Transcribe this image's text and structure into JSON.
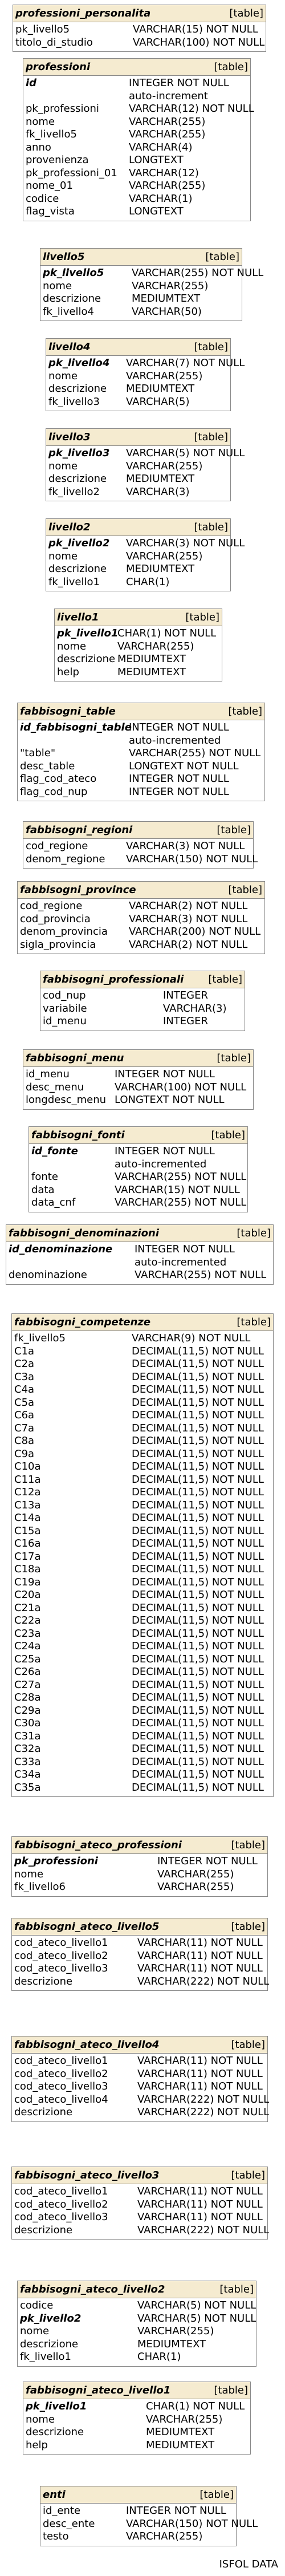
{
  "footer": "ISFOL DATA",
  "table_kind": "[table]",
  "tables": [
    {
      "name": "professioni_personalita",
      "rows": [
        [
          "pk_livello5",
          "VARCHAR(15) NOT NULL",
          false
        ],
        [
          "titolo_di_studio",
          "VARCHAR(100) NOT NULL",
          false
        ]
      ]
    },
    {
      "name": "professioni",
      "rows": [
        [
          "id",
          "INTEGER NOT NULL",
          true
        ],
        [
          "",
          "auto-increment",
          false
        ],
        [
          "pk_professioni",
          "VARCHAR(12) NOT NULL",
          false
        ],
        [
          "nome",
          "VARCHAR(255)",
          false
        ],
        [
          "fk_livello5",
          "VARCHAR(255)",
          false
        ],
        [
          "anno",
          "VARCHAR(4)",
          false
        ],
        [
          "provenienza",
          "LONGTEXT",
          false
        ],
        [
          "pk_professioni_01",
          "VARCHAR(12)",
          false
        ],
        [
          "nome_01",
          "VARCHAR(255)",
          false
        ],
        [
          "codice",
          "VARCHAR(1)",
          false
        ],
        [
          "flag_vista",
          "LONGTEXT",
          false
        ]
      ]
    },
    {
      "name": "livello5",
      "rows": [
        [
          "pk_livello5",
          "VARCHAR(255) NOT NULL",
          true
        ],
        [
          "nome",
          "VARCHAR(255)",
          false
        ],
        [
          "descrizione",
          "MEDIUMTEXT",
          false
        ],
        [
          "fk_livello4",
          "VARCHAR(50)",
          false
        ]
      ]
    },
    {
      "name": "livello4",
      "rows": [
        [
          "pk_livello4",
          "VARCHAR(7) NOT NULL",
          true
        ],
        [
          "nome",
          "VARCHAR(255)",
          false
        ],
        [
          "descrizione",
          "MEDIUMTEXT",
          false
        ],
        [
          "fk_livello3",
          "VARCHAR(5)",
          false
        ]
      ]
    },
    {
      "name": "livello3",
      "rows": [
        [
          "pk_livello3",
          "VARCHAR(5) NOT NULL",
          true
        ],
        [
          "nome",
          "VARCHAR(255)",
          false
        ],
        [
          "descrizione",
          "MEDIUMTEXT",
          false
        ],
        [
          "fk_livello2",
          "VARCHAR(3)",
          false
        ]
      ]
    },
    {
      "name": "livello2",
      "rows": [
        [
          "pk_livello2",
          "VARCHAR(3) NOT NULL",
          true
        ],
        [
          "nome",
          "VARCHAR(255)",
          false
        ],
        [
          "descrizione",
          "MEDIUMTEXT",
          false
        ],
        [
          "fk_livello1",
          "CHAR(1)",
          false
        ]
      ]
    },
    {
      "name": "livello1",
      "rows": [
        [
          "pk_livello1",
          "CHAR(1) NOT NULL",
          true
        ],
        [
          "nome",
          "VARCHAR(255)",
          false
        ],
        [
          "descrizione",
          "MEDIUMTEXT",
          false
        ],
        [
          "help",
          "MEDIUMTEXT",
          false
        ]
      ]
    },
    {
      "name": "fabbisogni_table",
      "rows": [
        [
          "id_fabbisogni_table",
          "INTEGER NOT NULL",
          true
        ],
        [
          "",
          "auto-incremented",
          false
        ],
        [
          "\"table\"",
          "VARCHAR(255) NOT NULL",
          false
        ],
        [
          "desc_table",
          "LONGTEXT NOT NULL",
          false
        ],
        [
          "flag_cod_ateco",
          "INTEGER NOT NULL",
          false
        ],
        [
          "flag_cod_nup",
          "INTEGER NOT NULL",
          false
        ]
      ]
    },
    {
      "name": "fabbisogni_regioni",
      "rows": [
        [
          "cod_regione",
          "VARCHAR(3) NOT NULL",
          false
        ],
        [
          "denom_regione",
          "VARCHAR(150) NOT NULL",
          false
        ]
      ]
    },
    {
      "name": "fabbisogni_province",
      "rows": [
        [
          "cod_regione",
          "VARCHAR(2) NOT NULL",
          false
        ],
        [
          "cod_provincia",
          "VARCHAR(3) NOT NULL",
          false
        ],
        [
          "denom_provincia",
          "VARCHAR(200) NOT NULL",
          false
        ],
        [
          "sigla_provincia",
          "VARCHAR(2) NOT NULL",
          false
        ]
      ]
    },
    {
      "name": "fabbisogni_professionali",
      "rows": [
        [
          "cod_nup",
          "INTEGER",
          false
        ],
        [
          "variabile",
          "VARCHAR(3)",
          false
        ],
        [
          "id_menu",
          "INTEGER",
          false
        ]
      ]
    },
    {
      "name": "fabbisogni_menu",
      "rows": [
        [
          "id_menu",
          "INTEGER NOT NULL",
          false
        ],
        [
          "desc_menu",
          "VARCHAR(100) NOT NULL",
          false
        ],
        [
          "longdesc_menu",
          "LONGTEXT NOT NULL",
          false
        ]
      ]
    },
    {
      "name": "fabbisogni_fonti",
      "rows": [
        [
          "id_fonte",
          "INTEGER NOT NULL",
          true
        ],
        [
          "",
          "auto-incremented",
          false
        ],
        [
          "fonte",
          "VARCHAR(255) NOT NULL",
          false
        ],
        [
          "data",
          "VARCHAR(15) NOT NULL",
          false
        ],
        [
          "data_cnf",
          "VARCHAR(255) NOT NULL",
          false
        ]
      ]
    },
    {
      "name": "fabbisogni_denominazioni",
      "rows": [
        [
          "id_denominazione",
          "INTEGER NOT NULL",
          true
        ],
        [
          "",
          "auto-incremented",
          false
        ],
        [
          "denominazione",
          "VARCHAR(255) NOT NULL",
          false
        ]
      ]
    },
    {
      "name": "fabbisogni_competenze",
      "rows": [
        [
          "fk_livello5",
          "VARCHAR(9) NOT NULL",
          false
        ],
        [
          "C1a",
          "DECIMAL(11,5) NOT NULL",
          false
        ],
        [
          "C2a",
          "DECIMAL(11,5) NOT NULL",
          false
        ],
        [
          "C3a",
          "DECIMAL(11,5) NOT NULL",
          false
        ],
        [
          "C4a",
          "DECIMAL(11,5) NOT NULL",
          false
        ],
        [
          "C5a",
          "DECIMAL(11,5) NOT NULL",
          false
        ],
        [
          "C6a",
          "DECIMAL(11,5) NOT NULL",
          false
        ],
        [
          "C7a",
          "DECIMAL(11,5) NOT NULL",
          false
        ],
        [
          "C8a",
          "DECIMAL(11,5) NOT NULL",
          false
        ],
        [
          "C9a",
          "DECIMAL(11,5) NOT NULL",
          false
        ],
        [
          "C10a",
          "DECIMAL(11,5) NOT NULL",
          false
        ],
        [
          "C11a",
          "DECIMAL(11,5) NOT NULL",
          false
        ],
        [
          "C12a",
          "DECIMAL(11,5) NOT NULL",
          false
        ],
        [
          "C13a",
          "DECIMAL(11,5) NOT NULL",
          false
        ],
        [
          "C14a",
          "DECIMAL(11,5) NOT NULL",
          false
        ],
        [
          "C15a",
          "DECIMAL(11,5) NOT NULL",
          false
        ],
        [
          "C16a",
          "DECIMAL(11,5) NOT NULL",
          false
        ],
        [
          "C17a",
          "DECIMAL(11,5) NOT NULL",
          false
        ],
        [
          "C18a",
          "DECIMAL(11,5) NOT NULL",
          false
        ],
        [
          "C19a",
          "DECIMAL(11,5) NOT NULL",
          false
        ],
        [
          "C20a",
          "DECIMAL(11,5) NOT NULL",
          false
        ],
        [
          "C21a",
          "DECIMAL(11,5) NOT NULL",
          false
        ],
        [
          "C22a",
          "DECIMAL(11,5) NOT NULL",
          false
        ],
        [
          "C23a",
          "DECIMAL(11,5) NOT NULL",
          false
        ],
        [
          "C24a",
          "DECIMAL(11,5) NOT NULL",
          false
        ],
        [
          "C25a",
          "DECIMAL(11,5) NOT NULL",
          false
        ],
        [
          "C26a",
          "DECIMAL(11,5) NOT NULL",
          false
        ],
        [
          "C27a",
          "DECIMAL(11,5) NOT NULL",
          false
        ],
        [
          "C28a",
          "DECIMAL(11,5) NOT NULL",
          false
        ],
        [
          "C29a",
          "DECIMAL(11,5) NOT NULL",
          false
        ],
        [
          "C30a",
          "DECIMAL(11,5) NOT NULL",
          false
        ],
        [
          "C31a",
          "DECIMAL(11,5) NOT NULL",
          false
        ],
        [
          "C32a",
          "DECIMAL(11,5) NOT NULL",
          false
        ],
        [
          "C33a",
          "DECIMAL(11,5) NOT NULL",
          false
        ],
        [
          "C34a",
          "DECIMAL(11,5) NOT NULL",
          false
        ],
        [
          "C35a",
          "DECIMAL(11,5) NOT NULL",
          false
        ]
      ]
    },
    {
      "name": "fabbisogni_ateco_professioni",
      "rows": [
        [
          "pk_professioni",
          "INTEGER NOT NULL",
          true
        ],
        [
          "nome",
          "VARCHAR(255)",
          false
        ],
        [
          "fk_livello6",
          "VARCHAR(255)",
          false
        ]
      ]
    },
    {
      "name": "fabbisogni_ateco_livello5",
      "rows": [
        [
          "cod_ateco_livello1",
          "VARCHAR(11) NOT NULL",
          false
        ],
        [
          "cod_ateco_livello2",
          "VARCHAR(11) NOT NULL",
          false
        ],
        [
          "cod_ateco_livello3",
          "VARCHAR(11) NOT NULL",
          false
        ],
        [
          "descrizione",
          "VARCHAR(222) NOT NULL",
          false
        ]
      ]
    },
    {
      "name": "fabbisogni_ateco_livello4",
      "rows": [
        [
          "cod_ateco_livello1",
          "VARCHAR(11) NOT NULL",
          false
        ],
        [
          "cod_ateco_livello2",
          "VARCHAR(11) NOT NULL",
          false
        ],
        [
          "cod_ateco_livello3",
          "VARCHAR(11) NOT NULL",
          false
        ],
        [
          "cod_ateco_livello4",
          "VARCHAR(222) NOT NULL",
          false
        ],
        [
          "descrizione",
          "VARCHAR(222) NOT NULL",
          false
        ]
      ]
    },
    {
      "name": "fabbisogni_ateco_livello3",
      "rows": [
        [
          "cod_ateco_livello1",
          "VARCHAR(11) NOT NULL",
          false
        ],
        [
          "cod_ateco_livello2",
          "VARCHAR(11) NOT NULL",
          false
        ],
        [
          "cod_ateco_livello3",
          "VARCHAR(11) NOT NULL",
          false
        ],
        [
          "descrizione",
          "VARCHAR(222) NOT NULL",
          false
        ]
      ]
    },
    {
      "name": "fabbisogni_ateco_livello2",
      "rows": [
        [
          "codice",
          "VARCHAR(5) NOT NULL",
          false
        ],
        [
          "pk_livello2",
          "VARCHAR(5) NOT NULL",
          true
        ],
        [
          "nome",
          "VARCHAR(255)",
          false
        ],
        [
          "descrizione",
          "MEDIUMTEXT",
          false
        ],
        [
          "fk_livello1",
          "CHAR(1)",
          false
        ]
      ]
    },
    {
      "name": "fabbisogni_ateco_livello1",
      "rows": [
        [
          "pk_livello1",
          "CHAR(1) NOT NULL",
          true
        ],
        [
          "nome",
          "VARCHAR(255)",
          false
        ],
        [
          "descrizione",
          "MEDIUMTEXT",
          false
        ],
        [
          "help",
          "MEDIUMTEXT",
          false
        ]
      ]
    },
    {
      "name": "enti",
      "rows": [
        [
          "id_ente",
          "INTEGER NOT NULL",
          false
        ],
        [
          "desc_ente",
          "VARCHAR(150) NOT NULL",
          false
        ],
        [
          "testo",
          "VARCHAR(255)",
          false
        ]
      ]
    }
  ]
}
